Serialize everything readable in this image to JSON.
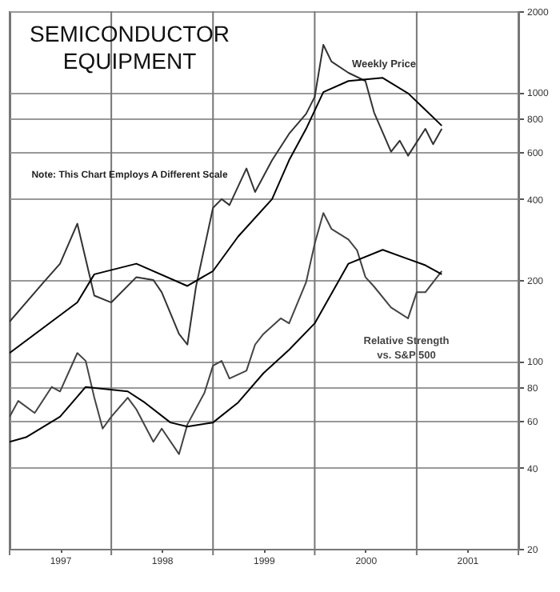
{
  "chart_data": {
    "type": "line",
    "title": "SEMICONDUCTOR\nEQUIPMENT",
    "annotations": [
      "Note: This Chart Employs A Different Scale"
    ],
    "xlim": [
      "1997-01-01",
      "2002-01-01"
    ],
    "xticks": [
      {
        "value": "1997-01-01",
        "label": null
      },
      {
        "value": "1997-07-01",
        "label": "1997"
      },
      {
        "value": "1998-01-01",
        "label": null
      },
      {
        "value": "1998-07-01",
        "label": "1998"
      },
      {
        "value": "1999-01-01",
        "label": null
      },
      {
        "value": "1999-07-01",
        "label": "1999"
      },
      {
        "value": "2000-01-01",
        "label": null
      },
      {
        "value": "2000-07-01",
        "label": "2000"
      },
      {
        "value": "2001-01-01",
        "label": null
      },
      {
        "value": "2001-07-01",
        "label": "2001"
      },
      {
        "value": "2002-01-01",
        "label": null
      }
    ],
    "ylim": [
      20,
      2000
    ],
    "yticks": [
      20,
      40,
      60,
      80,
      100,
      200,
      400,
      600,
      800,
      1000,
      2000
    ],
    "log": true,
    "grid": true,
    "marker": "none",
    "line_style": "solid",
    "series": [
      {
        "name": "Weekly Price",
        "color": "#333333",
        "x": [
          "1997-01",
          "1997-05",
          "1997-07",
          "1997-09",
          "1997-11",
          "1998-01",
          "1998-04",
          "1998-06",
          "1998-07",
          "1998-09",
          "1998-10",
          "1998-11",
          "1999-01",
          "1999-02",
          "1999-03",
          "1999-05",
          "1999-06",
          "1999-08",
          "1999-10",
          "1999-12",
          "2000-01",
          "2000-02",
          "2000-03",
          "2000-05",
          "2000-07",
          "2000-08",
          "2000-10",
          "2000-11",
          "2000-12",
          "2001-02",
          "2001-03",
          "2001-04"
        ],
        "values": [
          140,
          195,
          230,
          324,
          175,
          165,
          205,
          200,
          180,
          126,
          115,
          189,
          371,
          400,
          380,
          520,
          425,
          558,
          700,
          830,
          960,
          1500,
          1300,
          1180,
          1100,
          840,
          600,
          660,
          580,
          730,
          640,
          730
        ]
      },
      {
        "color": "#000000",
        "x": [
          "1997-01",
          "1997-09",
          "1997-11",
          "1998-04",
          "1998-10",
          "1999-01",
          "1999-04",
          "1999-08",
          "1999-10",
          "1999-12",
          "2000-02",
          "2000-05",
          "2000-09",
          "2000-12",
          "2001-02",
          "2001-04"
        ],
        "values": [
          107,
          165,
          210,
          230,
          190,
          216,
          290,
          400,
          558,
          730,
          1000,
          1100,
          1130,
          990,
          860,
          750
        ]
      },
      {
        "name": "Relative Strength\nvs. S&P 500",
        "color": "#444444",
        "x": [
          "1997-01",
          "1997-02",
          "1997-04",
          "1997-06",
          "1997-07",
          "1997-09",
          "1997-10",
          "1997-11",
          "1997-12",
          "1998-01",
          "1998-03",
          "1998-04",
          "1998-06",
          "1998-07",
          "1998-09",
          "1998-10",
          "1998-12",
          "1999-01",
          "1999-02",
          "1999-03",
          "1999-05",
          "1999-06",
          "1999-07",
          "1999-09",
          "1999-10",
          "1999-12",
          "2000-01",
          "2000-02",
          "2000-03",
          "2000-05",
          "2000-06",
          "2000-07",
          "2000-08",
          "2000-10",
          "2000-12",
          "2001-01",
          "2001-02",
          "2001-04"
        ],
        "values": [
          62,
          71,
          64,
          80,
          77,
          107,
          100,
          73,
          56,
          62,
          73,
          66,
          50,
          56,
          45,
          58,
          76,
          96,
          100,
          86,
          92,
          115,
          126,
          144,
          138,
          196,
          273,
          355,
          310,
          283,
          258,
          205,
          189,
          158,
          144,
          180,
          180,
          216
        ]
      },
      {
        "color": "#000000",
        "x": [
          "1997-01",
          "1997-03",
          "1997-07",
          "1997-10",
          "1998-03",
          "1998-05",
          "1998-08",
          "1998-10",
          "1999-01",
          "1999-04",
          "1999-07",
          "1999-10",
          "2000-01",
          "2000-05",
          "2000-09",
          "2001-02",
          "2001-04"
        ],
        "values": [
          50,
          52,
          62,
          80,
          77,
          70,
          59,
          57,
          59,
          70,
          90,
          110,
          138,
          230,
          259,
          227,
          210
        ]
      }
    ]
  }
}
